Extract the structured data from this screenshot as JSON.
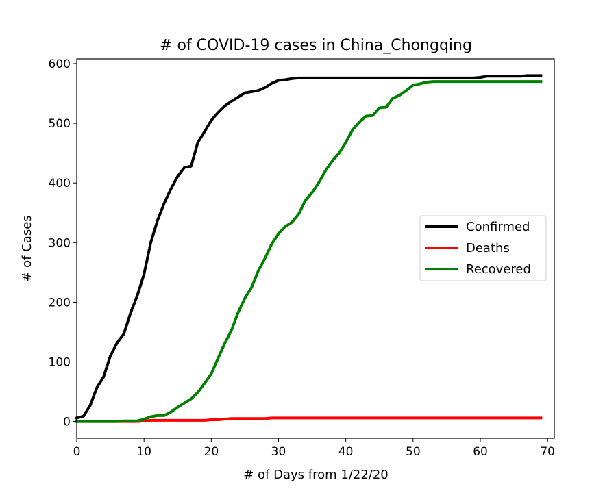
{
  "chart_data": {
    "type": "line",
    "title": "# of COVID-19 cases in China_Chongqing",
    "xlabel": "# of Days from 1/22/20",
    "ylabel": "# of Cases",
    "xlim": [
      0,
      71
    ],
    "ylim": [
      -28,
      608
    ],
    "xticks": [
      0,
      10,
      20,
      30,
      40,
      50,
      60,
      70
    ],
    "yticks": [
      0,
      100,
      200,
      300,
      400,
      500,
      600
    ],
    "grid": false,
    "legend_position": "center-right",
    "series": [
      {
        "name": "Confirmed",
        "color": "#000000",
        "x": [
          0,
          1,
          2,
          3,
          4,
          5,
          6,
          7,
          8,
          9,
          10,
          11,
          12,
          13,
          14,
          15,
          16,
          17,
          18,
          19,
          20,
          21,
          22,
          23,
          24,
          25,
          26,
          27,
          28,
          29,
          30,
          31,
          32,
          33,
          34,
          35,
          36,
          37,
          38,
          39,
          40,
          41,
          42,
          43,
          44,
          45,
          46,
          47,
          48,
          49,
          50,
          51,
          52,
          53,
          54,
          55,
          56,
          57,
          58,
          59,
          60,
          61,
          62,
          63,
          64,
          65,
          66,
          67,
          68,
          69
        ],
        "y": [
          6,
          9,
          27,
          57,
          75,
          110,
          132,
          147,
          182,
          211,
          247,
          300,
          337,
          366,
          390,
          411,
          426,
          428,
          468,
          486,
          505,
          518,
          529,
          537,
          544,
          551,
          553,
          555,
          560,
          567,
          572,
          573,
          575,
          576,
          576,
          576,
          576,
          576,
          576,
          576,
          576,
          576,
          576,
          576,
          576,
          576,
          576,
          576,
          576,
          576,
          576,
          576,
          576,
          576,
          576,
          576,
          576,
          576,
          576,
          576,
          577,
          579,
          579,
          579,
          579,
          579,
          579,
          580,
          580,
          580
        ]
      },
      {
        "name": "Deaths",
        "color": "#ff0000",
        "x": [
          0,
          1,
          2,
          3,
          4,
          5,
          6,
          7,
          8,
          9,
          10,
          11,
          12,
          13,
          14,
          15,
          16,
          17,
          18,
          19,
          20,
          21,
          22,
          23,
          24,
          25,
          26,
          27,
          28,
          29,
          30,
          31,
          32,
          33,
          34,
          35,
          36,
          37,
          38,
          39,
          40,
          41,
          42,
          43,
          44,
          45,
          46,
          47,
          48,
          49,
          50,
          51,
          52,
          53,
          54,
          55,
          56,
          57,
          58,
          59,
          60,
          61,
          62,
          63,
          64,
          65,
          66,
          67,
          68,
          69
        ],
        "y": [
          0,
          0,
          0,
          0,
          0,
          0,
          0,
          0,
          0,
          0,
          1,
          2,
          2,
          2,
          2,
          2,
          2,
          2,
          2,
          2,
          3,
          3,
          4,
          5,
          5,
          5,
          5,
          5,
          5,
          6,
          6,
          6,
          6,
          6,
          6,
          6,
          6,
          6,
          6,
          6,
          6,
          6,
          6,
          6,
          6,
          6,
          6,
          6,
          6,
          6,
          6,
          6,
          6,
          6,
          6,
          6,
          6,
          6,
          6,
          6,
          6,
          6,
          6,
          6,
          6,
          6,
          6,
          6,
          6,
          6
        ]
      },
      {
        "name": "Recovered",
        "color": "#008000",
        "x": [
          0,
          1,
          2,
          3,
          4,
          5,
          6,
          7,
          8,
          9,
          10,
          11,
          12,
          13,
          14,
          15,
          16,
          17,
          18,
          19,
          20,
          21,
          22,
          23,
          24,
          25,
          26,
          27,
          28,
          29,
          30,
          31,
          32,
          33,
          34,
          35,
          36,
          37,
          38,
          39,
          40,
          41,
          42,
          43,
          44,
          45,
          46,
          47,
          48,
          49,
          50,
          51,
          52,
          53,
          54,
          55,
          56,
          57,
          58,
          59,
          60,
          61,
          62,
          63,
          64,
          65,
          66,
          67,
          68,
          69
        ],
        "y": [
          0,
          0,
          0,
          0,
          0,
          0,
          0,
          1,
          1,
          1,
          4,
          8,
          10,
          10,
          16,
          24,
          31,
          38,
          49,
          64,
          80,
          106,
          131,
          153,
          183,
          207,
          225,
          253,
          274,
          298,
          315,
          327,
          334,
          348,
          371,
          384,
          401,
          421,
          437,
          450,
          468,
          489,
          502,
          512,
          513,
          526,
          527,
          542,
          547,
          555,
          564,
          566,
          569,
          570,
          570,
          570,
          570,
          570,
          570,
          570,
          570,
          570,
          570,
          570,
          570,
          570,
          570,
          570,
          570,
          570
        ]
      }
    ]
  }
}
